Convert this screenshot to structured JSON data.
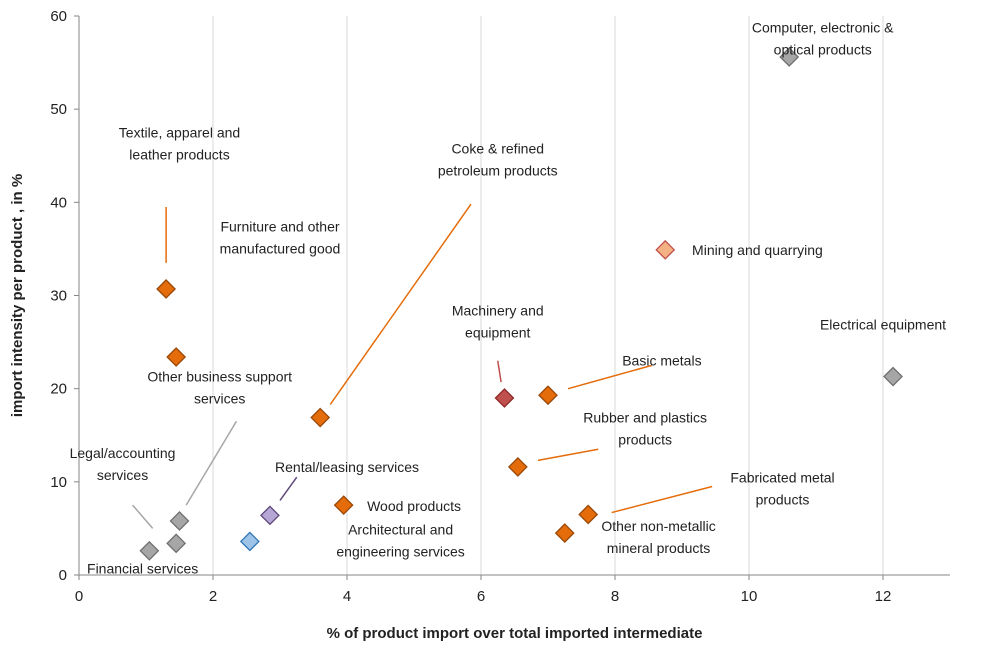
{
  "chart_data": {
    "type": "scatter",
    "xlabel": "% of product import over total imported intermediate",
    "ylabel": "import intensity  per product , in %",
    "xlim": [
      0,
      13
    ],
    "ylim": [
      0,
      60
    ],
    "x_ticks": [
      0,
      2,
      4,
      6,
      8,
      10,
      12
    ],
    "y_ticks": [
      0,
      10,
      20,
      30,
      40,
      50,
      60
    ],
    "grid": "vertical",
    "points": [
      {
        "x": 10.6,
        "y": 55.6,
        "color": "#a6a6a6",
        "border": "#6f6f6f",
        "label": [
          "Computer, electronic &",
          "optical products"
        ],
        "label_at": [
          11.1,
          57.6
        ],
        "anchor": "middle"
      },
      {
        "x": 8.75,
        "y": 34.9,
        "color": "#f4b183",
        "border": "#c0504d",
        "label": [
          "Mining and quarrying"
        ],
        "label_at": [
          9.15,
          34.9
        ],
        "anchor": "start"
      },
      {
        "x": 12.15,
        "y": 21.3,
        "color": "#a6a6a6",
        "border": "#6f6f6f",
        "label": [
          "Electrical equipment"
        ],
        "label_at": [
          12.0,
          26.9
        ],
        "anchor": "middle"
      },
      {
        "x": 1.3,
        "y": 30.7,
        "color": "#e46c0a",
        "border": "#984807",
        "label": [
          "Textile, apparel and",
          "leather products"
        ],
        "label_at": [
          1.5,
          46.3
        ],
        "anchor": "middle",
        "leader": [
          1.3,
          33.5,
          1.3,
          39.5
        ],
        "leader_color": "#e46c0a"
      },
      {
        "x": 1.45,
        "y": 23.4,
        "color": "#e46c0a",
        "border": "#984807",
        "label": [
          "Furniture and other",
          "manufactured good"
        ],
        "label_at": [
          3.0,
          36.2
        ],
        "anchor": "middle"
      },
      {
        "x": 3.6,
        "y": 16.9,
        "color": "#e46c0a",
        "border": "#984807",
        "label": [
          "Coke & refined",
          "petroleum products"
        ],
        "label_at": [
          6.25,
          44.6
        ],
        "anchor": "middle",
        "leader": [
          3.75,
          18.3,
          5.85,
          39.8
        ],
        "leader_color": "#e46c0a"
      },
      {
        "x": 6.35,
        "y": 19.0,
        "color": "#c0504d",
        "border": "#8e2a28",
        "label": [
          "Machinery and",
          "equipment"
        ],
        "label_at": [
          6.25,
          27.2
        ],
        "anchor": "middle",
        "leader": [
          6.3,
          20.7,
          6.25,
          23.0
        ],
        "leader_color": "#c0504d"
      },
      {
        "x": 7.0,
        "y": 19.3,
        "color": "#e46c0a",
        "border": "#984807",
        "label": [
          "Basic metals"
        ],
        "label_at": [
          8.7,
          23.0
        ],
        "anchor": "middle",
        "leader": [
          7.3,
          20.0,
          8.55,
          22.5
        ],
        "leader_color": "#e46c0a"
      },
      {
        "x": 6.55,
        "y": 11.6,
        "color": "#e46c0a",
        "border": "#984807",
        "label": [
          "Rubber and plastics",
          "products"
        ],
        "label_at": [
          8.45,
          15.7
        ],
        "anchor": "middle",
        "leader": [
          6.85,
          12.3,
          7.75,
          13.5
        ],
        "leader_color": "#e46c0a"
      },
      {
        "x": 7.6,
        "y": 6.5,
        "color": "#e46c0a",
        "border": "#984807",
        "label": [
          "Fabricated metal",
          "products"
        ],
        "label_at": [
          10.5,
          9.3
        ],
        "anchor": "middle",
        "leader": [
          7.95,
          6.7,
          9.45,
          9.5
        ],
        "leader_color": "#e46c0a"
      },
      {
        "x": 7.25,
        "y": 4.5,
        "color": "#e46c0a",
        "border": "#984807",
        "label": [
          "Other non-metallic",
          "mineral products"
        ],
        "label_at": [
          8.65,
          4.1
        ],
        "anchor": "middle"
      },
      {
        "x": 3.95,
        "y": 7.5,
        "color": "#e46c0a",
        "border": "#984807",
        "label": [
          "Wood products"
        ],
        "label_at": [
          4.3,
          7.4
        ],
        "anchor": "start"
      },
      {
        "x": 2.85,
        "y": 6.4,
        "color": "#b4a7d6",
        "border": "#5f497a",
        "label": [
          "Rental/leasing services"
        ],
        "label_at": [
          4.0,
          11.6
        ],
        "anchor": "middle",
        "leader": [
          3.0,
          8.0,
          3.25,
          10.5
        ],
        "leader_color": "#5f497a"
      },
      {
        "x": 2.55,
        "y": 3.6,
        "color": "#9dc3e6",
        "border": "#2e75b6",
        "label": [
          "Architectural and",
          "engineering services"
        ],
        "label_at": [
          4.8,
          3.7
        ],
        "anchor": "middle"
      },
      {
        "x": 1.5,
        "y": 5.8,
        "color": "#a6a6a6",
        "border": "#6f6f6f",
        "label": [
          "Other business support",
          "services"
        ],
        "label_at": [
          2.1,
          20.1
        ],
        "anchor": "middle",
        "leader": [
          1.6,
          7.5,
          2.35,
          16.5
        ],
        "leader_color": "#a6a6a6"
      },
      {
        "x": 1.45,
        "y": 3.4,
        "color": "#a6a6a6",
        "border": "#6f6f6f",
        "label": [
          "Legal/accounting",
          "services"
        ],
        "label_at": [
          0.65,
          11.9
        ],
        "anchor": "middle",
        "leader": [
          1.1,
          5.0,
          0.8,
          7.5
        ],
        "leader_color": "#a6a6a6"
      },
      {
        "x": 1.05,
        "y": 2.6,
        "color": "#a6a6a6",
        "border": "#6f6f6f",
        "label": [
          "Financial services"
        ],
        "label_at": [
          0.95,
          0.7
        ],
        "anchor": "middle"
      }
    ]
  }
}
